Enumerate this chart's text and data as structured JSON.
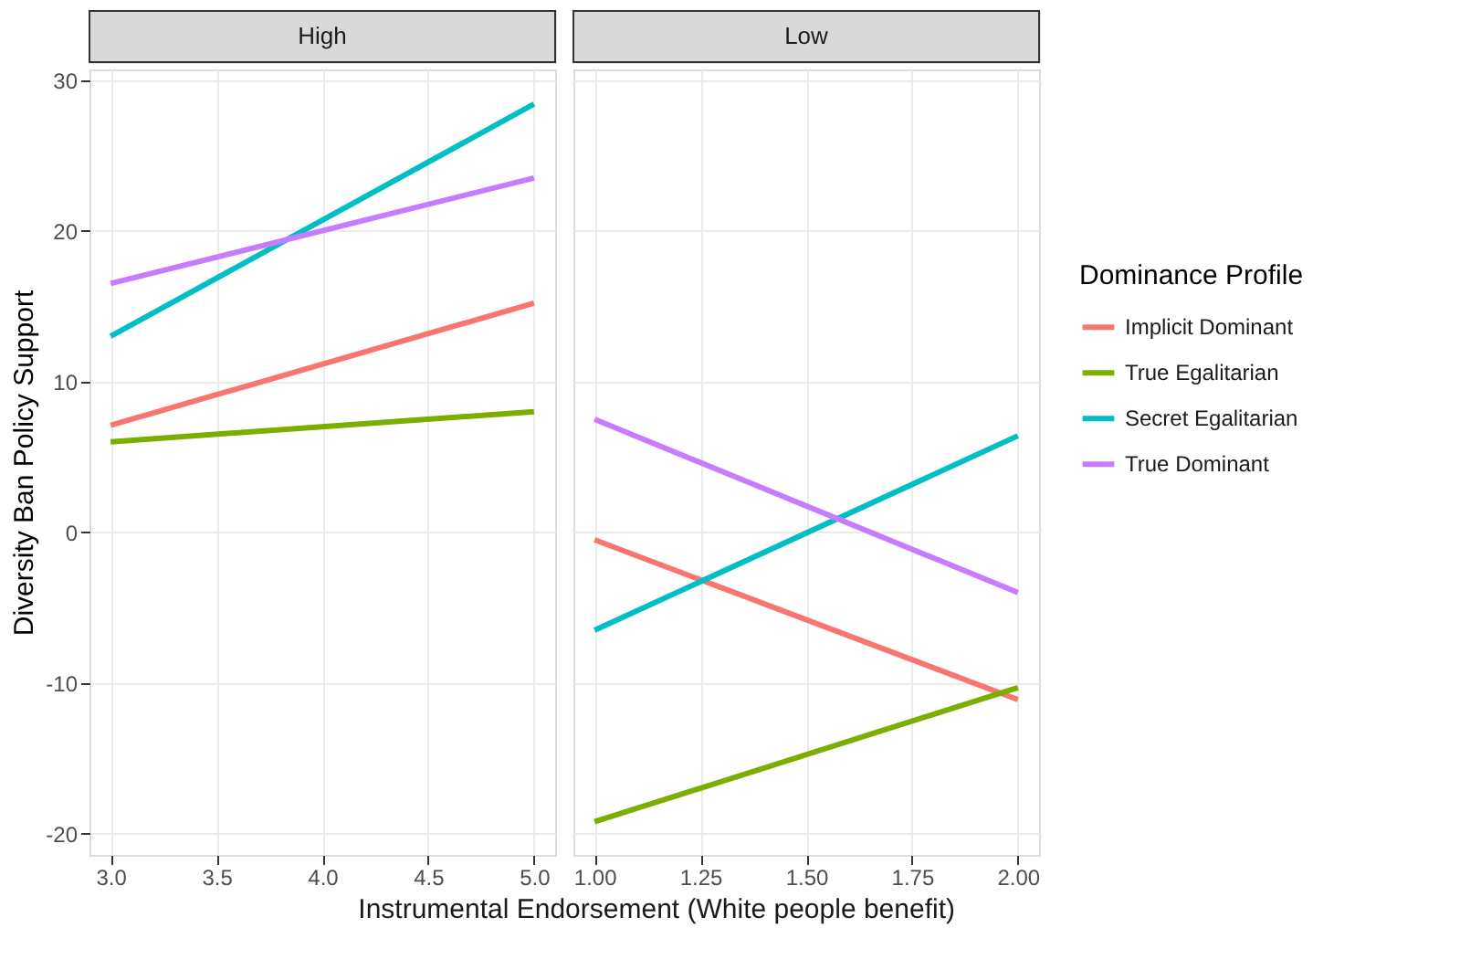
{
  "chart_data": [
    {
      "type": "line",
      "title": "High",
      "xlabel": "Instrumental Endorsement (White people benefit)",
      "ylabel": "Diversity Ban Policy Support",
      "xlim": [
        2.9,
        5.1
      ],
      "xticks": [
        {
          "value": 3,
          "label": "3.0"
        },
        {
          "value": 3.5,
          "label": "3.5"
        },
        {
          "value": 4,
          "label": "4.0"
        },
        {
          "value": 4.5,
          "label": "4.5"
        },
        {
          "value": 5,
          "label": "5.0"
        }
      ],
      "ylim": [
        -21.4,
        30.7
      ],
      "yticks": [
        -20,
        -10,
        0,
        10,
        20,
        30
      ],
      "grid": true,
      "series": [
        {
          "color": "#f8766d",
          "x": [
            3,
            5
          ],
          "values": [
            7.1,
            15.2
          ]
        },
        {
          "color": "#7cae00",
          "x": [
            3,
            5
          ],
          "values": [
            6.0,
            8.0
          ]
        },
        {
          "color": "#00bfc4",
          "x": [
            3,
            5
          ],
          "values": [
            13.0,
            28.4
          ]
        },
        {
          "color": "#c77cff",
          "x": [
            3,
            5
          ],
          "values": [
            16.5,
            23.5
          ]
        }
      ]
    },
    {
      "type": "line",
      "title": "Low",
      "legend_title": "Dominance Profile",
      "xlim": [
        0.95,
        2.05
      ],
      "xticks": [
        {
          "value": 1,
          "label": "1.00"
        },
        {
          "value": 1.25,
          "label": "1.25"
        },
        {
          "value": 1.5,
          "label": "1.50"
        },
        {
          "value": 1.75,
          "label": "1.75"
        },
        {
          "value": 2,
          "label": "2.00"
        }
      ],
      "ylim": [
        -21.4,
        30.7
      ],
      "yticks": [
        -20,
        -10,
        0,
        10,
        20,
        30
      ],
      "tick_labels": "x",
      "grid": true,
      "legend": "right",
      "series": [
        {
          "name": "Implicit Dominant",
          "color": "#f8766d",
          "x": [
            1,
            2
          ],
          "values": [
            -0.5,
            -11.1
          ]
        },
        {
          "name": "True Egalitarian",
          "color": "#7cae00",
          "x": [
            1,
            2
          ],
          "values": [
            -19.2,
            -10.3
          ]
        },
        {
          "name": "Secret Egalitarian",
          "color": "#00bfc4",
          "x": [
            1,
            2
          ],
          "values": [
            -6.5,
            6.4
          ]
        },
        {
          "name": "True Dominant",
          "color": "#c77cff",
          "x": [
            1,
            2
          ],
          "values": [
            7.5,
            -4.0
          ]
        }
      ]
    }
  ]
}
